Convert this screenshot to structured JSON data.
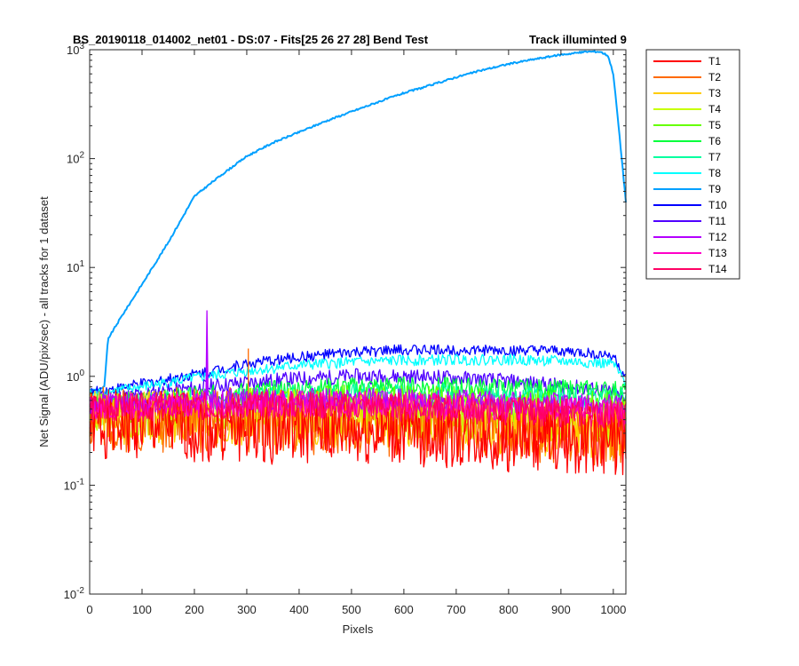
{
  "chart_data": {
    "type": "line",
    "title_left": "BS_20190118_014002_net01 - DS:07 - Fits[25  26  27  28]   Bend Test",
    "title_right": "Track illuminted 9",
    "xlabel": "Pixels",
    "ylabel": "Net Signal (ADU/pix/sec) - all tracks for 1 dataset",
    "xlim": [
      0,
      1024
    ],
    "ylim": [
      0.01,
      1000
    ],
    "yscale": "log",
    "x_ticks": [
      0,
      100,
      200,
      300,
      400,
      500,
      600,
      700,
      800,
      900,
      1000
    ],
    "x_tick_labels": [
      "0",
      "100",
      "200",
      "300",
      "400",
      "500",
      "600",
      "700",
      "800",
      "900",
      "1000"
    ],
    "y_ticks": [
      0.01,
      0.1,
      1,
      10,
      100,
      1000
    ],
    "y_tick_labels": [
      {
        "base": "10",
        "exp": "-2"
      },
      {
        "base": "10",
        "exp": "-1"
      },
      {
        "base": "10",
        "exp": "0"
      },
      {
        "base": "10",
        "exp": "1"
      },
      {
        "base": "10",
        "exp": "2"
      },
      {
        "base": "10",
        "exp": "3"
      }
    ],
    "legend_position": "outside-right-top",
    "series": [
      {
        "name": "T1",
        "color": "#ff0000",
        "x": [
          0,
          100,
          200,
          300,
          400,
          500,
          600,
          700,
          800,
          900,
          1000,
          1024
        ],
        "values": [
          0.36,
          0.36,
          0.34,
          0.33,
          0.32,
          0.31,
          0.3,
          0.29,
          0.27,
          0.26,
          0.25,
          0.25
        ],
        "noise": 0.32,
        "seed": 1
      },
      {
        "name": "T2",
        "color": "#ff6a00",
        "x": [
          0,
          100,
          200,
          300,
          400,
          500,
          600,
          700,
          800,
          900,
          1000,
          1024
        ],
        "values": [
          0.4,
          0.4,
          0.4,
          0.39,
          0.38,
          0.37,
          0.36,
          0.35,
          0.33,
          0.31,
          0.29,
          0.29
        ],
        "noise": 0.3,
        "seed": 2,
        "spike": {
          "x": 303,
          "y": 1.8
        }
      },
      {
        "name": "T3",
        "color": "#ffcc00",
        "x": [
          0,
          100,
          200,
          300,
          400,
          500,
          600,
          700,
          800,
          900,
          1000,
          1024
        ],
        "values": [
          0.42,
          0.42,
          0.42,
          0.42,
          0.41,
          0.4,
          0.39,
          0.37,
          0.35,
          0.33,
          0.31,
          0.31
        ],
        "noise": 0.26,
        "seed": 3
      },
      {
        "name": "T4",
        "color": "#c8ff00",
        "x": [
          0,
          100,
          200,
          300,
          400,
          500,
          600,
          700,
          800,
          900,
          1000,
          1024
        ],
        "values": [
          0.44,
          0.45,
          0.46,
          0.47,
          0.47,
          0.46,
          0.45,
          0.43,
          0.41,
          0.38,
          0.36,
          0.36
        ],
        "noise": 0.22,
        "seed": 4
      },
      {
        "name": "T5",
        "color": "#66ff00",
        "x": [
          0,
          100,
          200,
          300,
          400,
          500,
          600,
          700,
          800,
          900,
          1000,
          1024
        ],
        "values": [
          0.48,
          0.5,
          0.53,
          0.56,
          0.58,
          0.58,
          0.57,
          0.56,
          0.54,
          0.52,
          0.5,
          0.5
        ],
        "noise": 0.16,
        "seed": 5
      },
      {
        "name": "T6",
        "color": "#00ff3c",
        "x": [
          0,
          100,
          200,
          300,
          400,
          500,
          600,
          700,
          800,
          900,
          1000,
          1024
        ],
        "values": [
          0.55,
          0.6,
          0.66,
          0.72,
          0.77,
          0.8,
          0.81,
          0.8,
          0.78,
          0.76,
          0.75,
          0.74
        ],
        "noise": 0.09,
        "seed": 6
      },
      {
        "name": "T7",
        "color": "#00ffa0",
        "x": [
          0,
          100,
          200,
          300,
          400,
          500,
          600,
          700,
          800,
          900,
          1000,
          1024
        ],
        "values": [
          0.52,
          0.56,
          0.6,
          0.64,
          0.67,
          0.69,
          0.69,
          0.68,
          0.66,
          0.64,
          0.62,
          0.62
        ],
        "noise": 0.1,
        "seed": 7
      },
      {
        "name": "T8",
        "color": "#00ffff",
        "x": [
          0,
          100,
          200,
          300,
          400,
          500,
          600,
          700,
          800,
          900,
          1000,
          1024
        ],
        "values": [
          0.68,
          0.8,
          0.96,
          1.12,
          1.26,
          1.35,
          1.4,
          1.42,
          1.42,
          1.38,
          1.3,
          0.85
        ],
        "noise": 0.05,
        "seed": 8
      },
      {
        "name": "T9",
        "color": "#00a0ff",
        "x": [
          0,
          20,
          28,
          35,
          60,
          100,
          150,
          200,
          250,
          300,
          350,
          400,
          450,
          500,
          550,
          600,
          650,
          700,
          750,
          800,
          850,
          900,
          950,
          975,
          990,
          1000,
          1010,
          1018,
          1024
        ],
        "values": [
          0.75,
          0.76,
          0.8,
          2.2,
          3.5,
          7,
          17,
          45,
          70,
          105,
          140,
          175,
          220,
          270,
          330,
          400,
          470,
          560,
          650,
          740,
          820,
          900,
          960,
          960,
          880,
          600,
          200,
          80,
          40
        ],
        "noise": 0.008,
        "seed": 9
      },
      {
        "name": "T10",
        "color": "#0000ff",
        "x": [
          0,
          100,
          200,
          300,
          400,
          500,
          600,
          700,
          800,
          900,
          1000,
          1024
        ],
        "values": [
          0.7,
          0.85,
          1.05,
          1.3,
          1.5,
          1.65,
          1.75,
          1.75,
          1.72,
          1.7,
          1.55,
          0.95
        ],
        "noise": 0.05,
        "seed": 10
      },
      {
        "name": "T11",
        "color": "#5000ff",
        "x": [
          0,
          100,
          200,
          300,
          400,
          500,
          600,
          700,
          800,
          900,
          1000,
          1024
        ],
        "values": [
          0.6,
          0.68,
          0.78,
          0.88,
          0.95,
          1.0,
          1.0,
          0.97,
          0.9,
          0.82,
          0.72,
          0.55
        ],
        "noise": 0.07,
        "seed": 11
      },
      {
        "name": "T12",
        "color": "#b400ff",
        "x": [
          0,
          100,
          200,
          300,
          400,
          500,
          600,
          700,
          800,
          900,
          1000,
          1024
        ],
        "values": [
          0.55,
          0.58,
          0.6,
          0.62,
          0.62,
          0.62,
          0.61,
          0.6,
          0.58,
          0.56,
          0.54,
          0.53
        ],
        "noise": 0.1,
        "seed": 12,
        "spike": {
          "x": 224,
          "y": 4.0
        }
      },
      {
        "name": "T13",
        "color": "#ff00c8",
        "x": [
          0,
          100,
          200,
          300,
          400,
          500,
          600,
          700,
          800,
          900,
          1000,
          1024
        ],
        "values": [
          0.52,
          0.54,
          0.55,
          0.56,
          0.56,
          0.55,
          0.54,
          0.53,
          0.51,
          0.49,
          0.47,
          0.47
        ],
        "noise": 0.12,
        "seed": 13
      },
      {
        "name": "T14",
        "color": "#ff0064",
        "x": [
          0,
          100,
          200,
          300,
          400,
          500,
          600,
          700,
          800,
          900,
          1000,
          1024
        ],
        "values": [
          0.5,
          0.52,
          0.53,
          0.54,
          0.54,
          0.53,
          0.52,
          0.5,
          0.48,
          0.46,
          0.44,
          0.44
        ],
        "noise": 0.13,
        "seed": 14
      }
    ]
  }
}
